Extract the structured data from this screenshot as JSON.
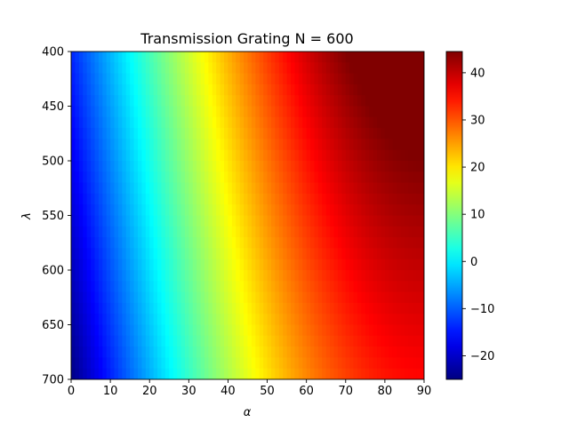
{
  "chart_data": {
    "type": "heatmap",
    "title": "Transmission Grating N = 600",
    "xlabel": "α",
    "ylabel": "λ",
    "xlim": [
      0,
      90
    ],
    "ylim": [
      400,
      700
    ],
    "y_inverted": true,
    "x_ticks": [
      0,
      10,
      20,
      30,
      40,
      50,
      60,
      70,
      80,
      90
    ],
    "y_ticks": [
      400,
      450,
      500,
      550,
      600,
      650,
      700
    ],
    "colormap": "jet",
    "colorbar": {
      "vmin": -25,
      "vmax": 44.5,
      "ticks": [
        -20,
        -10,
        0,
        10,
        20,
        30,
        40
      ]
    },
    "grating_lines_per_mm": 600,
    "legend": "none",
    "grid": false
  }
}
